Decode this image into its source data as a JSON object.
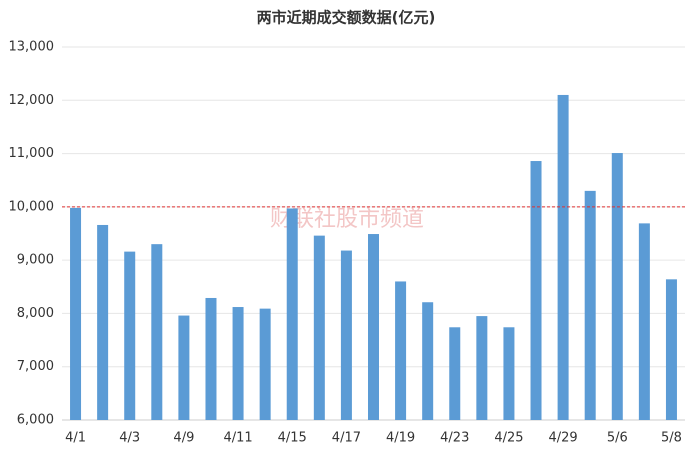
{
  "chart_data": {
    "type": "bar",
    "title": "两市近期成交额数据(亿元)",
    "categories": [
      "4/1",
      null,
      "4/3",
      null,
      "4/9",
      null,
      "4/11",
      null,
      "4/15",
      null,
      "4/17",
      null,
      "4/19",
      null,
      "4/23",
      null,
      "4/25",
      null,
      "4/29",
      null,
      "5/6",
      null,
      "5/8"
    ],
    "values": [
      9980,
      9660,
      9160,
      9300,
      7960,
      8290,
      8120,
      8090,
      9970,
      9460,
      9180,
      9490,
      8600,
      8210,
      7740,
      7950,
      7740,
      10860,
      12100,
      10300,
      11010,
      9690,
      8640
    ],
    "color": "#5b9bd5",
    "ylim": [
      6000,
      13000
    ],
    "yticks": [
      {
        "value": 6000,
        "label": "6,000"
      },
      {
        "value": 7000,
        "label": "7,000"
      },
      {
        "value": 8000,
        "label": "8,000"
      },
      {
        "value": 9000,
        "label": "9,000"
      },
      {
        "value": 10000,
        "label": "10,000"
      },
      {
        "value": 11000,
        "label": "11,000"
      },
      {
        "value": 12000,
        "label": "12,000"
      },
      {
        "value": 13000,
        "label": "13,000"
      }
    ],
    "grid": true,
    "reference_line": {
      "value": 10000,
      "color": "#e03030"
    },
    "watermark": "财联社股市频道"
  }
}
